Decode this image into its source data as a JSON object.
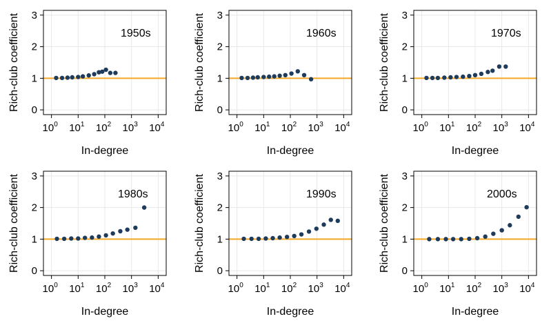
{
  "figure": {
    "x_axis_label": "In-degree",
    "y_axis_label": "Rich-club coefficient"
  },
  "chart_data": [
    {
      "type": "scatter",
      "label": "1950s",
      "xlabel": "In-degree",
      "ylabel": "Rich-club coefficient",
      "xscale": "log",
      "xlim": [
        0.5,
        20000
      ],
      "ylim": [
        -0.15,
        3.15
      ],
      "xticks": [
        {
          "value": 1,
          "exp": "0"
        },
        {
          "value": 10,
          "exp": "1"
        },
        {
          "value": 100,
          "exp": "2"
        },
        {
          "value": 1000,
          "exp": "3"
        },
        {
          "value": 10000,
          "exp": "4"
        }
      ],
      "yticks": [
        0,
        1,
        2,
        3
      ],
      "reference_line": {
        "y": 1,
        "color": "#f5a623"
      },
      "marker_color": "#1f3b5c",
      "grid": true,
      "points": [
        {
          "x": 1.5,
          "y": 1.01
        },
        {
          "x": 2.5,
          "y": 1.01
        },
        {
          "x": 4,
          "y": 1.02
        },
        {
          "x": 6,
          "y": 1.03
        },
        {
          "x": 10,
          "y": 1.04
        },
        {
          "x": 15,
          "y": 1.06
        },
        {
          "x": 25,
          "y": 1.09
        },
        {
          "x": 40,
          "y": 1.13
        },
        {
          "x": 60,
          "y": 1.19
        },
        {
          "x": 80,
          "y": 1.21
        },
        {
          "x": 110,
          "y": 1.27
        },
        {
          "x": 160,
          "y": 1.17
        },
        {
          "x": 250,
          "y": 1.17
        }
      ]
    },
    {
      "type": "scatter",
      "label": "1960s",
      "xlabel": "In-degree",
      "ylabel": "Rich-club coefficient",
      "xscale": "log",
      "xlim": [
        0.5,
        20000
      ],
      "ylim": [
        -0.15,
        3.15
      ],
      "xticks": [
        {
          "value": 1,
          "exp": "0"
        },
        {
          "value": 10,
          "exp": "1"
        },
        {
          "value": 100,
          "exp": "2"
        },
        {
          "value": 1000,
          "exp": "3"
        },
        {
          "value": 10000,
          "exp": "4"
        }
      ],
      "yticks": [
        0,
        1,
        2,
        3
      ],
      "reference_line": {
        "y": 1,
        "color": "#f5a623"
      },
      "marker_color": "#1f3b5c",
      "grid": true,
      "points": [
        {
          "x": 1.5,
          "y": 1.01
        },
        {
          "x": 2.5,
          "y": 1.01
        },
        {
          "x": 4,
          "y": 1.02
        },
        {
          "x": 6,
          "y": 1.03
        },
        {
          "x": 10,
          "y": 1.04
        },
        {
          "x": 16,
          "y": 1.05
        },
        {
          "x": 25,
          "y": 1.06
        },
        {
          "x": 40,
          "y": 1.08
        },
        {
          "x": 65,
          "y": 1.1
        },
        {
          "x": 110,
          "y": 1.15
        },
        {
          "x": 190,
          "y": 1.22
        },
        {
          "x": 330,
          "y": 1.1
        },
        {
          "x": 600,
          "y": 0.97
        }
      ]
    },
    {
      "type": "scatter",
      "label": "1970s",
      "xlabel": "In-degree",
      "ylabel": "Rich-club coefficient",
      "xscale": "log",
      "xlim": [
        0.5,
        20000
      ],
      "ylim": [
        -0.15,
        3.15
      ],
      "xticks": [
        {
          "value": 1,
          "exp": "0"
        },
        {
          "value": 10,
          "exp": "1"
        },
        {
          "value": 100,
          "exp": "2"
        },
        {
          "value": 1000,
          "exp": "3"
        },
        {
          "value": 10000,
          "exp": "4"
        }
      ],
      "yticks": [
        0,
        1,
        2,
        3
      ],
      "reference_line": {
        "y": 1,
        "color": "#f5a623"
      },
      "marker_color": "#1f3b5c",
      "grid": true,
      "points": [
        {
          "x": 1.5,
          "y": 1.01
        },
        {
          "x": 2.5,
          "y": 1.01
        },
        {
          "x": 4,
          "y": 1.01
        },
        {
          "x": 7,
          "y": 1.02
        },
        {
          "x": 12,
          "y": 1.03
        },
        {
          "x": 20,
          "y": 1.04
        },
        {
          "x": 35,
          "y": 1.05
        },
        {
          "x": 60,
          "y": 1.07
        },
        {
          "x": 100,
          "y": 1.1
        },
        {
          "x": 170,
          "y": 1.14
        },
        {
          "x": 300,
          "y": 1.2
        },
        {
          "x": 450,
          "y": 1.24
        },
        {
          "x": 800,
          "y": 1.37
        },
        {
          "x": 1400,
          "y": 1.37
        }
      ]
    },
    {
      "type": "scatter",
      "label": "1980s",
      "xlabel": "In-degree",
      "ylabel": "Rich-club coefficient",
      "xscale": "log",
      "xlim": [
        0.5,
        20000
      ],
      "ylim": [
        -0.15,
        3.15
      ],
      "xticks": [
        {
          "value": 1,
          "exp": "0"
        },
        {
          "value": 10,
          "exp": "1"
        },
        {
          "value": 100,
          "exp": "2"
        },
        {
          "value": 1000,
          "exp": "3"
        },
        {
          "value": 10000,
          "exp": "4"
        }
      ],
      "yticks": [
        0,
        1,
        2,
        3
      ],
      "reference_line": {
        "y": 1,
        "color": "#f5a623"
      },
      "marker_color": "#1f3b5c",
      "grid": true,
      "points": [
        {
          "x": 1.6,
          "y": 1.01
        },
        {
          "x": 3,
          "y": 1.01
        },
        {
          "x": 5.5,
          "y": 1.02
        },
        {
          "x": 10,
          "y": 1.02
        },
        {
          "x": 18,
          "y": 1.04
        },
        {
          "x": 33,
          "y": 1.05
        },
        {
          "x": 60,
          "y": 1.08
        },
        {
          "x": 110,
          "y": 1.12
        },
        {
          "x": 200,
          "y": 1.18
        },
        {
          "x": 380,
          "y": 1.25
        },
        {
          "x": 700,
          "y": 1.3
        },
        {
          "x": 1400,
          "y": 1.36
        },
        {
          "x": 3000,
          "y": 2.0
        }
      ]
    },
    {
      "type": "scatter",
      "label": "1990s",
      "xlabel": "In-degree",
      "ylabel": "Rich-club coefficient",
      "xscale": "log",
      "xlim": [
        0.5,
        20000
      ],
      "ylim": [
        -0.15,
        3.15
      ],
      "xticks": [
        {
          "value": 1,
          "exp": "0"
        },
        {
          "value": 10,
          "exp": "1"
        },
        {
          "value": 100,
          "exp": "2"
        },
        {
          "value": 1000,
          "exp": "3"
        },
        {
          "value": 10000,
          "exp": "4"
        }
      ],
      "yticks": [
        0,
        1,
        2,
        3
      ],
      "reference_line": {
        "y": 1,
        "color": "#f5a623"
      },
      "marker_color": "#1f3b5c",
      "grid": true,
      "points": [
        {
          "x": 1.8,
          "y": 1.01
        },
        {
          "x": 3.5,
          "y": 1.01
        },
        {
          "x": 6.5,
          "y": 1.01
        },
        {
          "x": 12,
          "y": 1.02
        },
        {
          "x": 22,
          "y": 1.03
        },
        {
          "x": 40,
          "y": 1.05
        },
        {
          "x": 75,
          "y": 1.07
        },
        {
          "x": 140,
          "y": 1.1
        },
        {
          "x": 260,
          "y": 1.15
        },
        {
          "x": 500,
          "y": 1.24
        },
        {
          "x": 950,
          "y": 1.33
        },
        {
          "x": 1800,
          "y": 1.46
        },
        {
          "x": 3300,
          "y": 1.61
        },
        {
          "x": 6000,
          "y": 1.58
        }
      ]
    },
    {
      "type": "scatter",
      "label": "2000s",
      "xlabel": "In-degree",
      "ylabel": "Rich-club coefficient",
      "xscale": "log",
      "xlim": [
        0.5,
        20000
      ],
      "ylim": [
        -0.15,
        3.15
      ],
      "xticks": [
        {
          "value": 1,
          "exp": "0"
        },
        {
          "value": 10,
          "exp": "1"
        },
        {
          "value": 100,
          "exp": "2"
        },
        {
          "value": 1000,
          "exp": "3"
        },
        {
          "value": 10000,
          "exp": "4"
        }
      ],
      "yticks": [
        0,
        1,
        2,
        3
      ],
      "reference_line": {
        "y": 1,
        "color": "#f5a623"
      },
      "marker_color": "#1f3b5c",
      "grid": true,
      "points": [
        {
          "x": 1.9,
          "y": 1.0
        },
        {
          "x": 4,
          "y": 1.0
        },
        {
          "x": 8,
          "y": 1.0
        },
        {
          "x": 15,
          "y": 1.0
        },
        {
          "x": 30,
          "y": 1.0
        },
        {
          "x": 60,
          "y": 1.01
        },
        {
          "x": 120,
          "y": 1.03
        },
        {
          "x": 240,
          "y": 1.08
        },
        {
          "x": 480,
          "y": 1.17
        },
        {
          "x": 1000,
          "y": 1.28
        },
        {
          "x": 2000,
          "y": 1.44
        },
        {
          "x": 4200,
          "y": 1.71
        },
        {
          "x": 8500,
          "y": 2.01
        }
      ]
    }
  ]
}
